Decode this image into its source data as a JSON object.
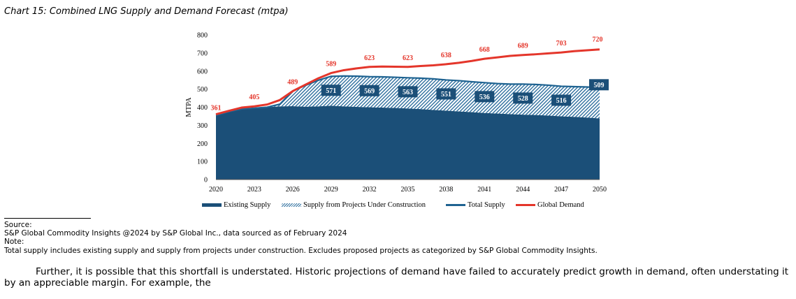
{
  "document": {
    "chart_title": "Chart 15: Combined LNG Supply and Demand Forecast (mtpa)",
    "source_label": "Source:",
    "source_text": "S&P Global Commodity Insights @2024 by S&P Global Inc., data sourced as of February 2024",
    "note_label": "Note:",
    "note_text": "Total supply includes existing supply and supply from projects under construction. Excludes proposed projects as categorized by S&P Global Commodity Insights.",
    "paragraph": "Further, it is possible that this shortfall is understated. Historic projections of demand have failed to accurately predict growth in demand, often understating it by an appreciable margin. For example, the"
  },
  "colors": {
    "existing": "#1b4f78",
    "construction_hatch": "#2e6f9e",
    "total_supply": "#1f6391",
    "demand": "#e4362b",
    "label_box": "#1b4f78"
  },
  "chart_data": {
    "type": "area",
    "title": "Combined LNG Supply and Demand Forecast (mtpa)",
    "xlabel": "",
    "ylabel": "MTPA",
    "xlim": [
      2020,
      2050
    ],
    "ylim": [
      0,
      800
    ],
    "yticks": [
      0,
      100,
      200,
      300,
      400,
      500,
      600,
      700,
      800
    ],
    "xticks": [
      2020,
      2023,
      2026,
      2029,
      2032,
      2035,
      2038,
      2041,
      2044,
      2047,
      2050
    ],
    "grid": false,
    "legend_position": "bottom",
    "series": [
      {
        "name": "Existing Supply",
        "kind": "area",
        "x": [
          2020,
          2021,
          2022,
          2023,
          2024,
          2025,
          2026,
          2027,
          2028,
          2029,
          2030,
          2031,
          2032,
          2033,
          2034,
          2035,
          2036,
          2037,
          2038,
          2039,
          2040,
          2041,
          2042,
          2043,
          2044,
          2045,
          2046,
          2047,
          2048,
          2049,
          2050
        ],
        "values": [
          355,
          375,
          390,
          395,
          400,
          405,
          406,
          403,
          405,
          408,
          405,
          402,
          400,
          398,
          396,
          393,
          390,
          385,
          381,
          377,
          373,
          368,
          365,
          362,
          359,
          357,
          354,
          350,
          347,
          343,
          338
        ]
      },
      {
        "name": "Supply from Projects Under Construction",
        "kind": "hatched-area",
        "x": [
          2020,
          2021,
          2022,
          2023,
          2024,
          2025,
          2026,
          2027,
          2028,
          2029,
          2030,
          2031,
          2032,
          2033,
          2034,
          2035,
          2036,
          2037,
          2038,
          2039,
          2040,
          2041,
          2042,
          2043,
          2044,
          2045,
          2046,
          2047,
          2048,
          2049,
          2050
        ],
        "values": [
          0,
          0,
          0,
          0,
          0,
          12,
          84,
          118,
          144,
          163,
          168,
          170,
          169,
          170,
          170,
          170,
          171,
          172,
          170,
          170,
          168,
          168,
          166,
          166,
          169,
          169,
          168,
          166,
          167,
          169,
          171
        ]
      },
      {
        "name": "Total Supply",
        "kind": "line",
        "x": [
          2020,
          2021,
          2022,
          2023,
          2024,
          2025,
          2026,
          2027,
          2028,
          2029,
          2030,
          2031,
          2032,
          2033,
          2034,
          2035,
          2036,
          2037,
          2038,
          2039,
          2040,
          2041,
          2042,
          2043,
          2044,
          2045,
          2046,
          2047,
          2048,
          2049,
          2050
        ],
        "values": [
          355,
          375,
          390,
          395,
          400,
          417,
          490,
          521,
          549,
          571,
          573,
          572,
          569,
          568,
          566,
          563,
          561,
          557,
          551,
          547,
          541,
          536,
          531,
          528,
          528,
          526,
          522,
          516,
          514,
          512,
          509
        ]
      },
      {
        "name": "Global Demand",
        "kind": "line",
        "x": [
          2020,
          2021,
          2022,
          2023,
          2024,
          2025,
          2026,
          2027,
          2028,
          2029,
          2030,
          2031,
          2032,
          2033,
          2034,
          2035,
          2036,
          2037,
          2038,
          2039,
          2040,
          2041,
          2042,
          2043,
          2044,
          2045,
          2046,
          2047,
          2048,
          2049,
          2050
        ],
        "values": [
          361,
          380,
          398,
          405,
          415,
          440,
          489,
          525,
          560,
          589,
          605,
          615,
          623,
          625,
          624,
          623,
          628,
          632,
          638,
          646,
          656,
          668,
          676,
          684,
          689,
          693,
          698,
          703,
          710,
          715,
          720
        ]
      }
    ],
    "data_labels": {
      "demand": [
        {
          "x": 2020,
          "label": "361"
        },
        {
          "x": 2023,
          "label": "405"
        },
        {
          "x": 2026,
          "label": "489"
        },
        {
          "x": 2029,
          "label": "589"
        },
        {
          "x": 2032,
          "label": "623"
        },
        {
          "x": 2035,
          "label": "623"
        },
        {
          "x": 2038,
          "label": "638"
        },
        {
          "x": 2041,
          "label": "668"
        },
        {
          "x": 2044,
          "label": "689"
        },
        {
          "x": 2047,
          "label": "703"
        },
        {
          "x": 2050,
          "label": "720"
        }
      ],
      "supply": [
        {
          "x": 2029,
          "label": "571"
        },
        {
          "x": 2032,
          "label": "569"
        },
        {
          "x": 2035,
          "label": "563"
        },
        {
          "x": 2038,
          "label": "551"
        },
        {
          "x": 2041,
          "label": "536"
        },
        {
          "x": 2044,
          "label": "528"
        },
        {
          "x": 2047,
          "label": "516"
        },
        {
          "x": 2050,
          "label": "509"
        }
      ]
    },
    "legend": [
      "Existing Supply",
      "Supply from Projects Under Construction",
      "Total Supply",
      "Global Demand"
    ]
  }
}
